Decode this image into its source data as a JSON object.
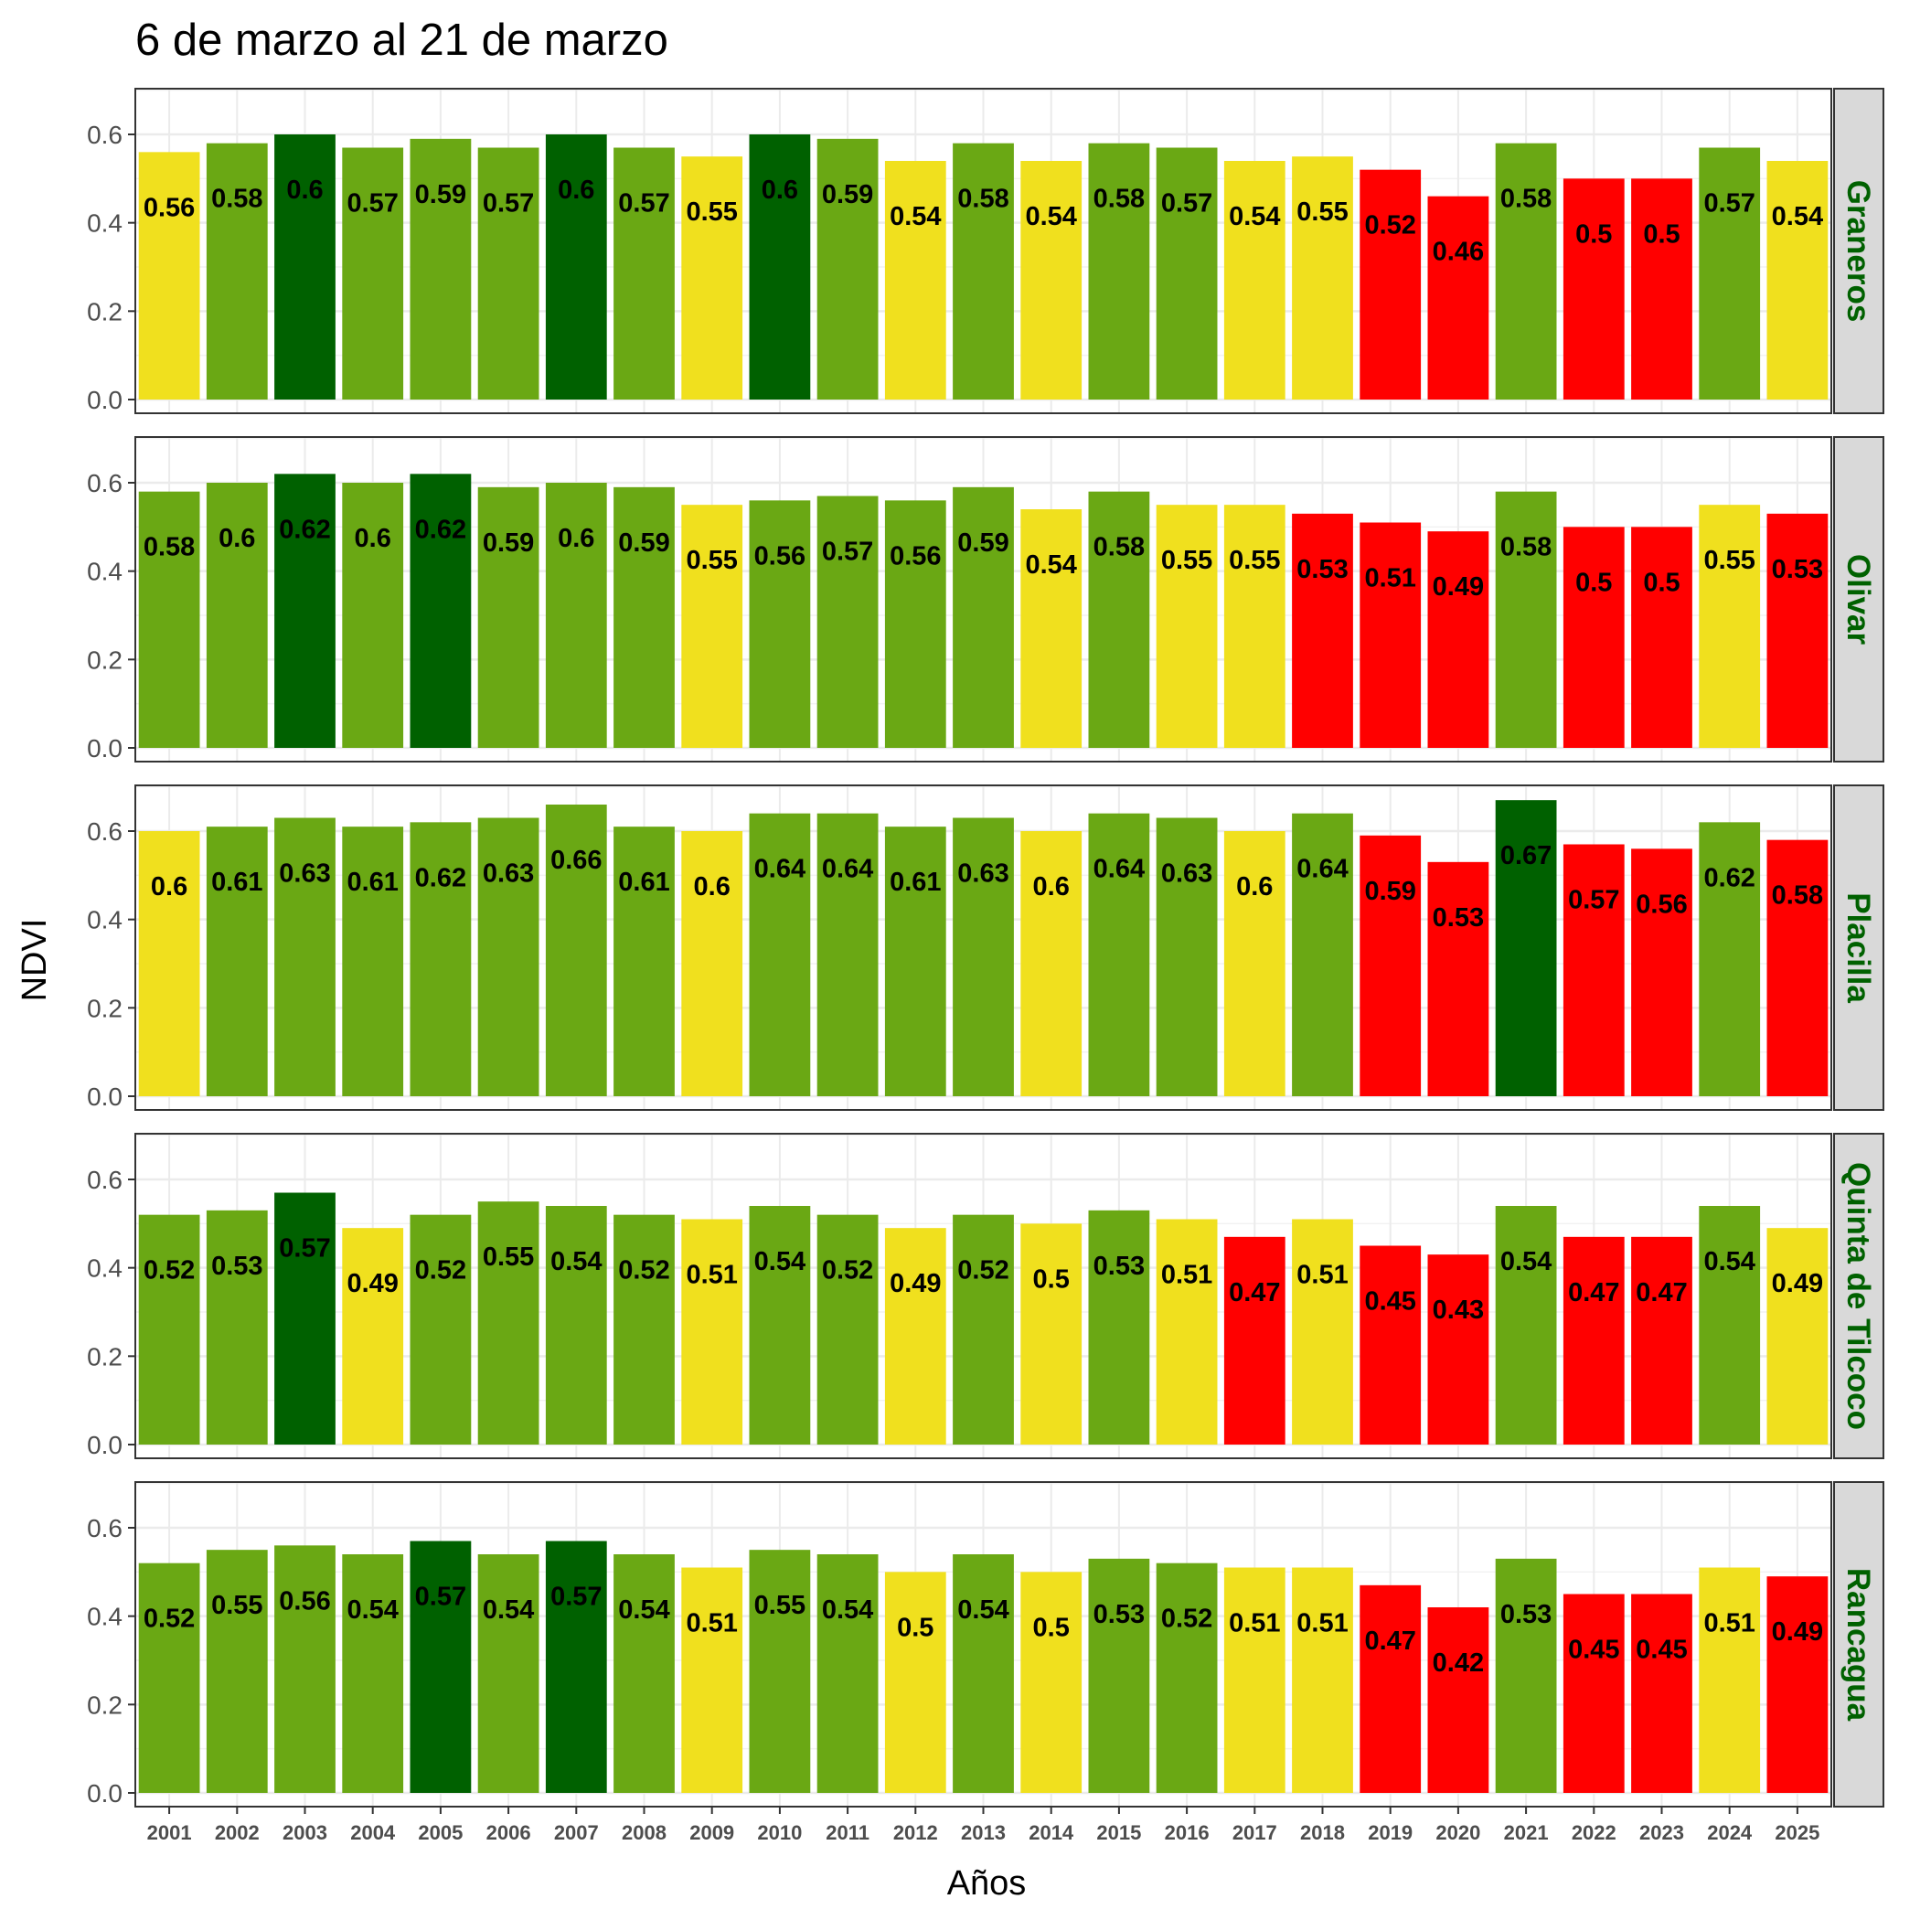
{
  "chart_data": {
    "type": "bar",
    "title": "6 de marzo al 21 de marzo",
    "xlabel": "Años",
    "ylabel": "NDVI",
    "ylim": [
      0,
      0.7
    ],
    "yticks": [
      "0.0",
      "0.2",
      "0.4",
      "0.6"
    ],
    "grid": true,
    "categories": [
      "2001",
      "2002",
      "2003",
      "2004",
      "2005",
      "2006",
      "2007",
      "2008",
      "2009",
      "2010",
      "2011",
      "2012",
      "2013",
      "2014",
      "2015",
      "2016",
      "2017",
      "2018",
      "2019",
      "2020",
      "2021",
      "2022",
      "2023",
      "2024",
      "2025"
    ],
    "colors": {
      "dark_green": "#006100",
      "green": "#6aa814",
      "yellow": "#f0e01e",
      "red": "#ff0000",
      "strip_bg": "#d9d9d9",
      "strip_text": "#006100"
    },
    "facets": [
      {
        "name": "Graneros",
        "values": [
          0.56,
          0.58,
          0.6,
          0.57,
          0.59,
          0.57,
          0.6,
          0.57,
          0.55,
          0.6,
          0.59,
          0.54,
          0.58,
          0.54,
          0.58,
          0.57,
          0.54,
          0.55,
          0.52,
          0.46,
          0.58,
          0.5,
          0.5,
          0.57,
          0.54
        ],
        "classes": [
          "yellow",
          "green",
          "dark_green",
          "green",
          "green",
          "green",
          "dark_green",
          "green",
          "yellow",
          "dark_green",
          "green",
          "yellow",
          "green",
          "yellow",
          "green",
          "green",
          "yellow",
          "yellow",
          "red",
          "red",
          "green",
          "red",
          "red",
          "green",
          "yellow"
        ]
      },
      {
        "name": "Olivar",
        "values": [
          0.58,
          0.6,
          0.62,
          0.6,
          0.62,
          0.59,
          0.6,
          0.59,
          0.55,
          0.56,
          0.57,
          0.56,
          0.59,
          0.54,
          0.58,
          0.55,
          0.55,
          0.53,
          0.51,
          0.49,
          0.58,
          0.5,
          0.5,
          0.55,
          0.53
        ],
        "classes": [
          "green",
          "green",
          "dark_green",
          "green",
          "dark_green",
          "green",
          "green",
          "green",
          "yellow",
          "green",
          "green",
          "green",
          "green",
          "yellow",
          "green",
          "yellow",
          "yellow",
          "red",
          "red",
          "red",
          "green",
          "red",
          "red",
          "yellow",
          "red"
        ]
      },
      {
        "name": "Placilla",
        "values": [
          0.6,
          0.61,
          0.63,
          0.61,
          0.62,
          0.63,
          0.66,
          0.61,
          0.6,
          0.64,
          0.64,
          0.61,
          0.63,
          0.6,
          0.64,
          0.63,
          0.6,
          0.64,
          0.59,
          0.53,
          0.67,
          0.57,
          0.56,
          0.62,
          0.58
        ],
        "classes": [
          "yellow",
          "green",
          "green",
          "green",
          "green",
          "green",
          "green",
          "green",
          "yellow",
          "green",
          "green",
          "green",
          "green",
          "yellow",
          "green",
          "green",
          "yellow",
          "green",
          "red",
          "red",
          "dark_green",
          "red",
          "red",
          "green",
          "red"
        ]
      },
      {
        "name": "Quinta de Tilcoco",
        "values": [
          0.52,
          0.53,
          0.57,
          0.49,
          0.52,
          0.55,
          0.54,
          0.52,
          0.51,
          0.54,
          0.52,
          0.49,
          0.52,
          0.5,
          0.53,
          0.51,
          0.47,
          0.51,
          0.45,
          0.43,
          0.54,
          0.47,
          0.47,
          0.54,
          0.49
        ],
        "classes": [
          "green",
          "green",
          "dark_green",
          "yellow",
          "green",
          "green",
          "green",
          "green",
          "yellow",
          "green",
          "green",
          "yellow",
          "green",
          "yellow",
          "green",
          "yellow",
          "red",
          "yellow",
          "red",
          "red",
          "green",
          "red",
          "red",
          "green",
          "yellow"
        ]
      },
      {
        "name": "Rancagua",
        "values": [
          0.52,
          0.55,
          0.56,
          0.54,
          0.57,
          0.54,
          0.57,
          0.54,
          0.51,
          0.55,
          0.54,
          0.5,
          0.54,
          0.5,
          0.53,
          0.52,
          0.51,
          0.51,
          0.47,
          0.42,
          0.53,
          0.45,
          0.45,
          0.51,
          0.49
        ],
        "classes": [
          "green",
          "green",
          "green",
          "green",
          "dark_green",
          "green",
          "dark_green",
          "green",
          "yellow",
          "green",
          "green",
          "yellow",
          "green",
          "yellow",
          "green",
          "green",
          "yellow",
          "yellow",
          "red",
          "red",
          "green",
          "red",
          "red",
          "yellow",
          "red"
        ]
      }
    ]
  }
}
